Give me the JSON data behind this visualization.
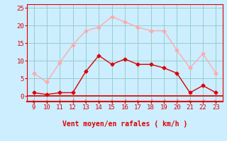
{
  "x": [
    9,
    10,
    11,
    12,
    13,
    14,
    15,
    16,
    17,
    18,
    19,
    20,
    21,
    22,
    23
  ],
  "y_mean": [
    1,
    0.5,
    1,
    1,
    7,
    11.5,
    9,
    10.5,
    9,
    9,
    8,
    6.5,
    1,
    3,
    1
  ],
  "y_gust": [
    6.5,
    4,
    9.5,
    14.5,
    18.5,
    19.5,
    22.5,
    21,
    19.5,
    18.5,
    18.5,
    13,
    8,
    12,
    6.5
  ],
  "line_color_mean": "#dd0000",
  "line_color_gust": "#ffaaaa",
  "bg_color": "#cceeff",
  "grid_color": "#99cccc",
  "axis_color": "#dd0000",
  "xlabel": "Vent moyen/en rafales ( km/h )",
  "xlim": [
    8.5,
    23.5
  ],
  "ylim": [
    -1.5,
    26
  ],
  "yticks": [
    0,
    5,
    10,
    15,
    20,
    25
  ],
  "xticks": [
    9,
    10,
    11,
    12,
    13,
    14,
    15,
    16,
    17,
    18,
    19,
    20,
    21,
    22,
    23
  ]
}
